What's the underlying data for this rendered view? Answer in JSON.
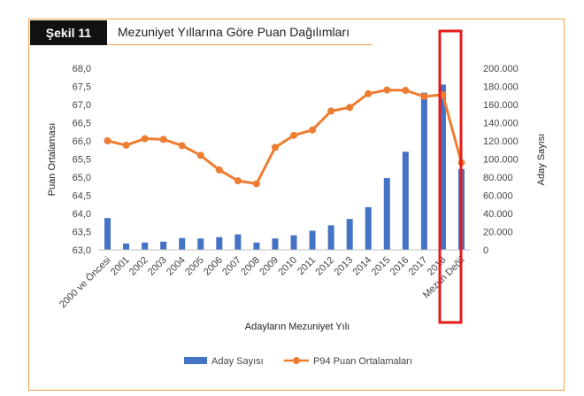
{
  "figure": {
    "tag": "Şekil 11",
    "title": "Mezuniyet Yıllarına Göre Puan Dağılımları"
  },
  "colors": {
    "bar": "#4472c4",
    "line": "#ed7d31",
    "frame": "#f0a24a",
    "highlight": "#e51b1b"
  },
  "chart_data": {
    "type": "bar",
    "categories": [
      "2000 ve Öncesi",
      "2001",
      "2002",
      "2003",
      "2004",
      "2005",
      "2006",
      "2007",
      "2008",
      "2009",
      "2010",
      "2011",
      "2012",
      "2013",
      "2014",
      "2015",
      "2016",
      "2017",
      "2018",
      "Mezun Değil"
    ],
    "xlabel": "Adayların Mezuniyet Yılı",
    "ylabel": "Puan Ortalaması",
    "y2label": "Aday Sayısı",
    "ylim": [
      63.0,
      68.0
    ],
    "y2lim": [
      0,
      200000
    ],
    "yticks": [
      "63,0",
      "63,5",
      "64,0",
      "64,5",
      "65,0",
      "65,5",
      "66,0",
      "66,5",
      "67,0",
      "67,5",
      "68,0"
    ],
    "y2ticks": [
      "0",
      "20.000",
      "40.000",
      "60.000",
      "80.000",
      "100.000",
      "120.000",
      "140.000",
      "160.000",
      "180.000",
      "200.000"
    ],
    "series": [
      {
        "name": "Aday Sayısı",
        "type": "bar",
        "axis": "right",
        "values": [
          35000,
          7000,
          8000,
          9000,
          13000,
          12500,
          14000,
          17000,
          8000,
          12500,
          16000,
          21000,
          27000,
          34000,
          47000,
          79000,
          108000,
          173000,
          182000,
          89000
        ]
      },
      {
        "name": "P94 Puan Ortalamaları",
        "type": "line",
        "axis": "left",
        "values": [
          66.0,
          65.88,
          66.06,
          66.04,
          65.87,
          65.6,
          65.2,
          64.9,
          64.82,
          65.82,
          66.15,
          66.3,
          66.82,
          66.92,
          67.3,
          67.4,
          67.39,
          67.22,
          67.27,
          65.4
        ]
      }
    ],
    "legend": "bottom",
    "grid": false,
    "highlight_category": "2018"
  }
}
